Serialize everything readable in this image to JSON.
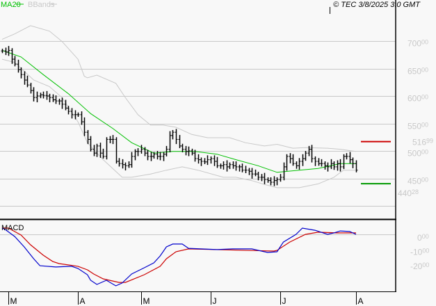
{
  "legend": {
    "ma_label": "MA20",
    "bbands_label": "BBands"
  },
  "copyright": "© TEC 3/8/2025 3:0 GMT",
  "macd_label": "MACD",
  "colors": {
    "bars": "#000000",
    "ma20": "#00c000",
    "bbands": "#c8c8c8",
    "macd": "#0000cc",
    "signal": "#cc0000",
    "resistance": "#cc0000",
    "support": "#009900",
    "grid": "#c8c8c8"
  },
  "chart_data": [
    {
      "type": "ohlc-bar",
      "ylim": [
        400,
        725
      ],
      "yticks": [
        {
          "v": 700,
          "int": "700",
          "dec": "00"
        },
        {
          "v": 650,
          "int": "650",
          "dec": "00"
        },
        {
          "v": 600,
          "int": "600",
          "dec": "00"
        },
        {
          "v": 550,
          "int": "550",
          "dec": "00"
        },
        {
          "v": 500,
          "int": "500",
          "dec": "00"
        },
        {
          "v": 450,
          "int": "450",
          "dec": "00"
        },
        {
          "v": 400,
          "int": "",
          "dec": ""
        }
      ],
      "xticks": [
        {
          "label": "M",
          "bar": 2
        },
        {
          "label": "A",
          "bar": 24
        },
        {
          "label": "M",
          "bar": 44
        },
        {
          "label": "J",
          "bar": 66
        },
        {
          "label": "J",
          "bar": 88
        },
        {
          "label": "A",
          "bar": 112
        }
      ],
      "close": [
        682,
        680,
        683,
        667,
        658,
        648,
        639,
        629,
        620,
        610,
        597,
        600,
        602,
        601,
        600,
        597,
        593,
        591,
        591,
        585,
        578,
        572,
        566,
        566,
        566,
        553,
        534,
        521,
        503,
        496,
        509,
        496,
        490,
        521,
        521,
        521,
        481,
        477,
        475,
        473,
        475,
        490,
        499,
        499,
        503,
        496,
        490,
        490,
        494,
        490,
        490,
        494,
        503,
        528,
        534,
        521,
        509,
        503,
        499,
        500,
        496,
        486,
        484,
        481,
        480,
        484,
        486,
        481,
        473,
        473,
        475,
        471,
        475,
        473,
        471,
        471,
        465,
        465,
        463,
        458,
        458,
        452,
        452,
        448,
        446,
        443,
        446,
        448,
        452,
        471,
        490,
        486,
        477,
        473,
        481,
        486,
        496,
        503,
        486,
        481,
        477,
        477,
        473,
        471,
        477,
        471,
        477,
        471,
        490,
        490,
        484,
        477,
        465
      ],
      "ma20": [
        [
          0,
          683
        ],
        [
          6,
          671
        ],
        [
          13,
          639
        ],
        [
          21,
          604
        ],
        [
          28,
          568
        ],
        [
          35,
          541
        ],
        [
          41,
          515
        ],
        [
          48,
          496
        ],
        [
          54,
          499
        ],
        [
          61,
          499
        ],
        [
          68,
          494
        ],
        [
          74,
          484
        ],
        [
          81,
          473
        ],
        [
          87,
          461
        ],
        [
          94,
          465
        ],
        [
          100,
          468
        ],
        [
          107,
          477
        ],
        [
          112,
          477
        ]
      ],
      "bb_upper": [
        [
          0,
          703
        ],
        [
          4,
          713
        ],
        [
          9,
          728
        ],
        [
          15,
          718
        ],
        [
          19,
          699
        ],
        [
          24,
          667
        ],
        [
          26,
          636
        ],
        [
          27,
          633
        ],
        [
          30,
          638
        ],
        [
          36,
          623
        ],
        [
          39,
          597
        ],
        [
          43,
          566
        ],
        [
          47,
          547
        ],
        [
          51,
          547
        ],
        [
          55,
          543
        ],
        [
          60,
          530
        ],
        [
          65,
          524
        ],
        [
          72,
          524
        ],
        [
          77,
          515
        ],
        [
          83,
          509
        ],
        [
          87,
          512
        ],
        [
          92,
          505
        ],
        [
          96,
          506
        ],
        [
          103,
          505
        ],
        [
          107,
          503
        ],
        [
          112,
          499
        ]
      ],
      "bb_lower": [
        [
          0,
          667
        ],
        [
          4,
          661
        ],
        [
          10,
          629
        ],
        [
          15,
          617
        ],
        [
          19,
          597
        ],
        [
          24,
          553
        ],
        [
          27,
          515
        ],
        [
          32,
          484
        ],
        [
          38,
          452
        ],
        [
          41,
          452
        ],
        [
          47,
          458
        ],
        [
          52,
          465
        ],
        [
          57,
          471
        ],
        [
          62,
          465
        ],
        [
          70,
          452
        ],
        [
          74,
          452
        ],
        [
          79,
          446
        ],
        [
          83,
          439
        ],
        [
          87,
          433
        ],
        [
          94,
          433
        ],
        [
          100,
          440
        ],
        [
          105,
          452
        ],
        [
          108,
          465
        ],
        [
          112,
          465
        ]
      ],
      "levels": [
        {
          "name": "resistance",
          "value": 516.99,
          "int": "516",
          "dec": "99"
        },
        {
          "name": "support",
          "value": 440.28,
          "int": "440",
          "dec": "28"
        }
      ]
    },
    {
      "type": "line",
      "title": "MACD",
      "ylim": [
        -40,
        10
      ],
      "yticks": [
        {
          "v": 0,
          "int": "0",
          "dec": "00"
        },
        {
          "v": -10,
          "int": "-10",
          "dec": "00"
        },
        {
          "v": -20,
          "int": "-20",
          "dec": "00"
        }
      ],
      "macd": [
        [
          0,
          4.4
        ],
        [
          1,
          3.4
        ],
        [
          4,
          -1.5
        ],
        [
          7,
          -8.8
        ],
        [
          10,
          -17.1
        ],
        [
          12,
          -22
        ],
        [
          17,
          -22.9
        ],
        [
          22,
          -22.4
        ],
        [
          24,
          -23.9
        ],
        [
          27,
          -28.3
        ],
        [
          28,
          -32.2
        ],
        [
          30,
          -35.1
        ],
        [
          33,
          -32.2
        ],
        [
          36,
          -36.1
        ],
        [
          38,
          -34.1
        ],
        [
          41,
          -27.8
        ],
        [
          45,
          -23.4
        ],
        [
          48,
          -20
        ],
        [
          50,
          -15.1
        ],
        [
          52,
          -8.8
        ],
        [
          54,
          -6.8
        ],
        [
          57,
          -6.8
        ],
        [
          59,
          -9.8
        ],
        [
          68,
          -10.7
        ],
        [
          73,
          -10.2
        ],
        [
          79,
          -10.2
        ],
        [
          84,
          -12.7
        ],
        [
          87,
          -12.2
        ],
        [
          89,
          -5.4
        ],
        [
          93,
          0
        ],
        [
          95,
          4.4
        ],
        [
          99,
          2.9
        ],
        [
          103,
          0
        ],
        [
          105,
          1
        ],
        [
          107,
          2.4
        ],
        [
          110,
          2
        ],
        [
          112,
          0
        ]
      ],
      "signal": [
        [
          0,
          4.4
        ],
        [
          2,
          4.4
        ],
        [
          6,
          -0.5
        ],
        [
          9,
          -7.3
        ],
        [
          13,
          -14.6
        ],
        [
          16,
          -19
        ],
        [
          18,
          -20.5
        ],
        [
          24,
          -22.4
        ],
        [
          27,
          -24.9
        ],
        [
          29,
          -27.8
        ],
        [
          32,
          -31.2
        ],
        [
          37,
          -33.7
        ],
        [
          39,
          -33.7
        ],
        [
          45,
          -28.3
        ],
        [
          50,
          -22.4
        ],
        [
          52,
          -17.1
        ],
        [
          55,
          -12.2
        ],
        [
          59,
          -10.2
        ],
        [
          86,
          -11.7
        ],
        [
          87,
          -11.2
        ],
        [
          91,
          -5.4
        ],
        [
          96,
          0
        ],
        [
          100,
          1.5
        ],
        [
          106,
          1
        ],
        [
          112,
          1
        ]
      ]
    }
  ]
}
